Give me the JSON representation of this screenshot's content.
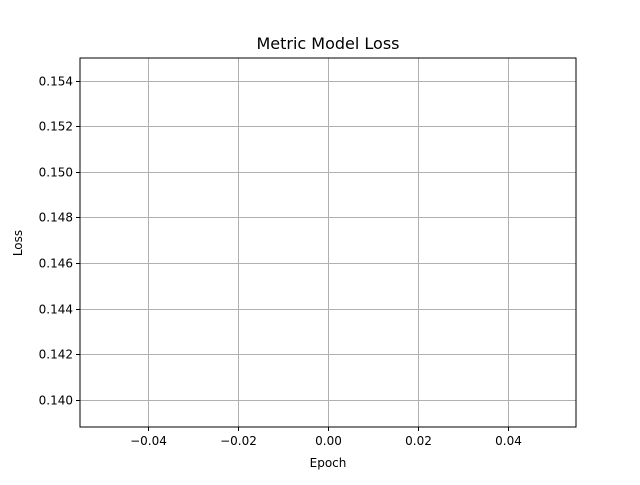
{
  "chart_data": {
    "type": "line",
    "title": "Metric Model Loss",
    "xlabel": "Epoch",
    "ylabel": "Loss",
    "xlim": [
      -0.055,
      0.055
    ],
    "ylim": [
      0.1388,
      0.155
    ],
    "xticks": [
      -0.04,
      -0.02,
      0.0,
      0.02,
      0.04
    ],
    "xtick_labels": [
      "−0.04",
      "−0.02",
      "0.00",
      "0.02",
      "0.04"
    ],
    "yticks": [
      0.14,
      0.142,
      0.144,
      0.146,
      0.148,
      0.15,
      0.152,
      0.154
    ],
    "ytick_labels": [
      "0.140",
      "0.142",
      "0.144",
      "0.146",
      "0.148",
      "0.150",
      "0.152",
      "0.154"
    ],
    "grid": true,
    "series": []
  },
  "colors": {
    "grid": "#b0b0b0",
    "axes": "#000000",
    "background": "#ffffff"
  }
}
